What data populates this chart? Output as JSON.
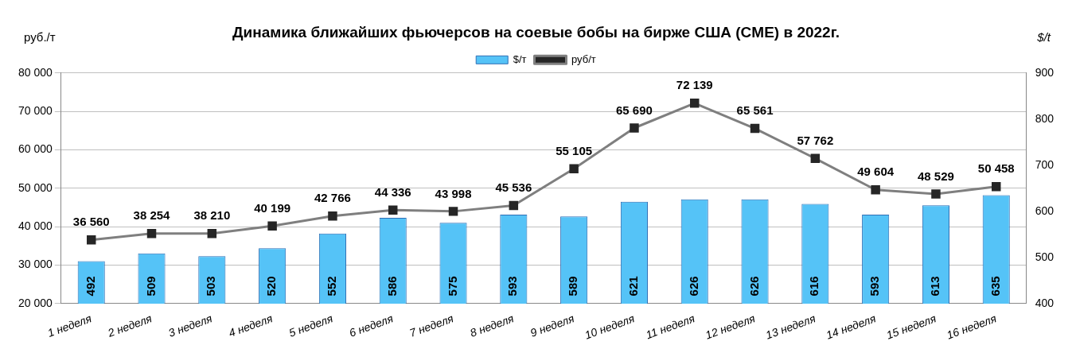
{
  "chart_data": {
    "type": "bar",
    "title": "Динамика ближайших фьючерсов на соевые бобы на бирже США (CME) в 2022г.",
    "ylabel": "руб./т",
    "y2label": "$/t",
    "categories": [
      "1 неделя",
      "2 неделя",
      "3 неделя",
      "4 неделя",
      "5 неделя",
      "6 неделя",
      "7 неделя",
      "8 неделя",
      "9 неделя",
      "10 неделя",
      "11 неделя",
      "12 неделя",
      "13 неделя",
      "14 неделя",
      "15 неделя",
      "16 неделя"
    ],
    "series": [
      {
        "name": "$/т",
        "axis": "y2",
        "color": "#55c3f7",
        "values": [
          492,
          509,
          503,
          520,
          552,
          586,
          575,
          593,
          589,
          621,
          626,
          626,
          616,
          593,
          613,
          635
        ],
        "value_labels": [
          "492",
          "509",
          "503",
          "520",
          "552",
          "586",
          "575",
          "593",
          "589",
          "621",
          "626",
          "626",
          "616",
          "593",
          "613",
          "635"
        ]
      },
      {
        "name": "руб/т",
        "type": "line",
        "axis": "y",
        "color": "#7f7f7f",
        "marker": "square",
        "values": [
          36560,
          38254,
          38210,
          40199,
          42766,
          44336,
          43998,
          45536,
          55105,
          65690,
          72139,
          65561,
          57762,
          49604,
          48529,
          50458
        ],
        "value_labels": [
          "36 560",
          "38 254",
          "38 210",
          "40 199",
          "42 766",
          "44 336",
          "43 998",
          "45 536",
          "55 105",
          "65 690",
          "72 139",
          "65 561",
          "57 762",
          "49 604",
          "48 529",
          "50 458"
        ]
      }
    ],
    "ylim": [
      20000,
      80000
    ],
    "yticks": [
      {
        "value": 20000,
        "label": "20 000"
      },
      {
        "value": 30000,
        "label": "30 000"
      },
      {
        "value": 40000,
        "label": "40 000"
      },
      {
        "value": 50000,
        "label": "50 000"
      },
      {
        "value": 60000,
        "label": "60 000"
      },
      {
        "value": 70000,
        "label": "70 000"
      },
      {
        "value": 80000,
        "label": "80 000"
      }
    ],
    "y2lim": [
      400,
      900
    ],
    "y2ticks": [
      400,
      500,
      600,
      700,
      800,
      900
    ],
    "grid": "y",
    "legend": "top"
  }
}
